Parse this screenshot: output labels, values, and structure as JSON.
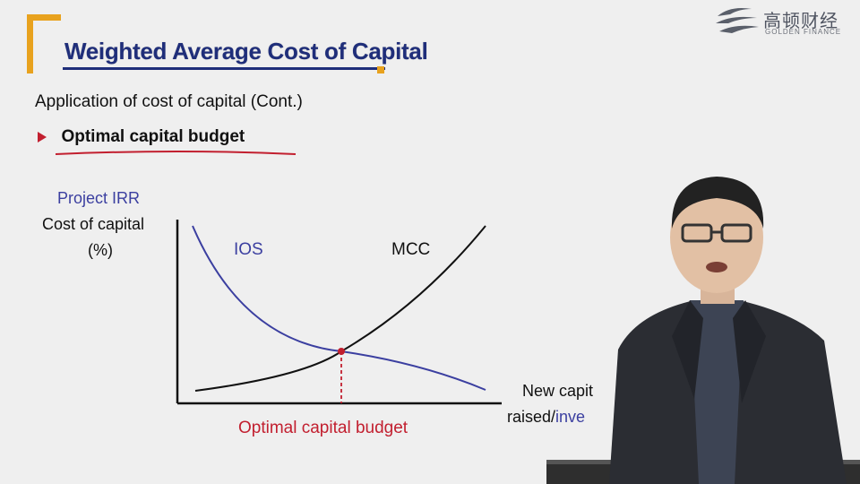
{
  "slide": {
    "title": "Weighted Average Cost of Capital",
    "subtitle": "Application of cost of capital (Cont.)",
    "bullet": "Optimal capital budget"
  },
  "logo": {
    "name": "高顿财经",
    "sub": "GOLDEN FINANCE"
  },
  "chart": {
    "y_label_top": "Project IRR",
    "y_label_mid": "Cost of capital",
    "y_label_unit": "(%)",
    "ios_label": "IOS",
    "mcc_label": "MCC",
    "optimal_label": "Optimal capital budget",
    "x_label_line1": "New capit",
    "x_label_line2_black": "raised/",
    "x_label_line2_blue": "inve"
  },
  "colors": {
    "title_blue": "#1f2e7a",
    "accent_orange": "#e8a21e",
    "ios_blue": "#3b3fa0",
    "highlight_red": "#c21f2f"
  }
}
